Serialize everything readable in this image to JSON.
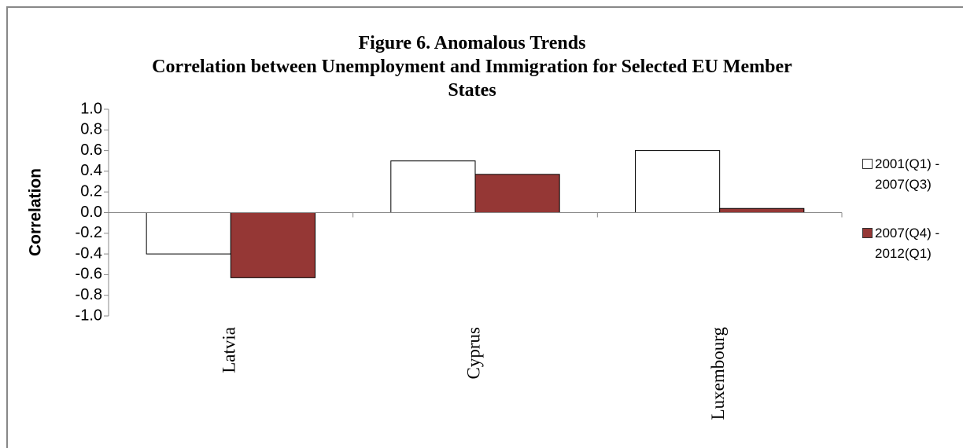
{
  "chart_data": {
    "type": "bar",
    "title": "Figure 6. Anomalous Trends",
    "subtitle": "Correlation between Unemployment and Immigration for Selected EU Member States",
    "y_label": "Correlation",
    "categories": [
      "Latvia",
      "Cyprus",
      "Luxembourg"
    ],
    "series": [
      {
        "name": "2001(Q1) - 2007(Q3)",
        "color": "#ffffff",
        "values": [
          -0.4,
          0.5,
          0.6
        ]
      },
      {
        "name": "2007(Q4) - 2012(Q1)",
        "color": "#953735",
        "values": [
          -0.63,
          0.37,
          0.04
        ]
      }
    ],
    "ylim": [
      -1,
      1
    ],
    "yticks": [
      {
        "value": -1,
        "label": "-1.0"
      },
      {
        "value": -0.8,
        "label": "-0.8"
      },
      {
        "value": -0.6,
        "label": "-0.6"
      },
      {
        "value": -0.4,
        "label": "-0.4"
      },
      {
        "value": -0.2,
        "label": "-0.2"
      },
      {
        "value": 0,
        "label": "0.0"
      },
      {
        "value": 0.2,
        "label": "0.2"
      },
      {
        "value": 0.4,
        "label": "0.4"
      },
      {
        "value": 0.6,
        "label": "0.6"
      },
      {
        "value": 0.8,
        "label": "0.8"
      },
      {
        "value": 1,
        "label": "1.0"
      }
    ],
    "grid": false,
    "legend_position": "right"
  }
}
